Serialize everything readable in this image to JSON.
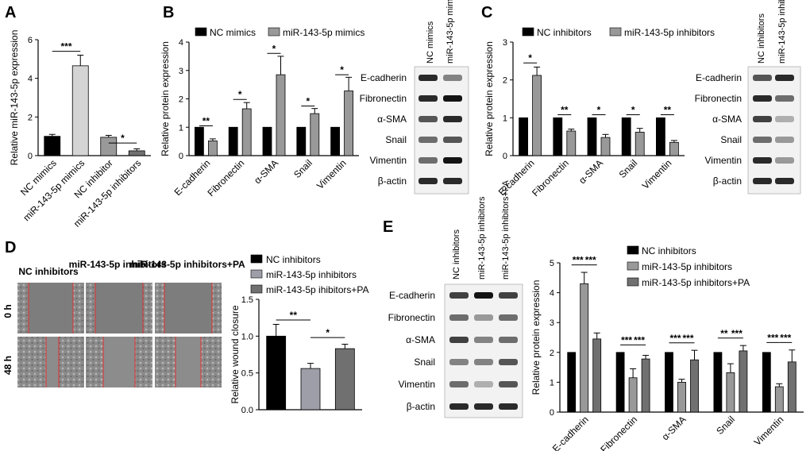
{
  "panel_letters": [
    "A",
    "B",
    "C",
    "D",
    "E"
  ],
  "blot_label_sets": {
    "B": [
      "E-cadherin",
      "Fibronectin",
      "α-SMA",
      "Snail",
      "Vimentin",
      "β-actin"
    ],
    "C": [
      "E-cadherin",
      "Fibronectin",
      "α-SMA",
      "Snail",
      "Vimentin",
      "β-actin"
    ],
    "E": [
      "E-cadherin",
      "Fibronectin",
      "α-SMA",
      "Snail",
      "Vimentin",
      "β-actin"
    ]
  },
  "blot_lanes": {
    "B": [
      "NC mimics",
      "miR-143-5p mimics"
    ],
    "C": [
      "NC inhibitors",
      "miR-143-5p inhibitors"
    ],
    "E": [
      "NC inhibitors",
      "miR-143-5p inhibitors",
      "miR-143-5p inhibitors+PA"
    ]
  },
  "wound_images": {
    "columns": [
      "NC inhibitors",
      "miR-143-5p inhibitors",
      "miR-143-5p inhibitors+PA"
    ],
    "rows": [
      "0 h",
      "48 h"
    ]
  },
  "colors": {
    "black": "#000000",
    "gray": "#999999",
    "light": "#d4d4d4",
    "mid": "#9e9ea8",
    "dark": "#707070"
  },
  "chart_data": [
    {
      "id": "A",
      "type": "bar",
      "categories": [
        "NC mimics",
        "miR-143-5p mimics",
        "NC inhibitor",
        "miR-143-5p inhibitors"
      ],
      "values": [
        1.0,
        4.65,
        0.95,
        0.25
      ],
      "errors": [
        0.1,
        0.55,
        0.1,
        0.1
      ],
      "colors": [
        "#000000",
        "#d4d4d4",
        "#999999",
        "#707070"
      ],
      "ylabel": "Relative miR-143-5p expression",
      "ylim": [
        0,
        6
      ],
      "yticks": [
        0,
        2,
        4,
        6
      ],
      "sig": [
        {
          "from": 0,
          "to": 1,
          "label": "***",
          "value": 5.4
        },
        {
          "from": 2,
          "to": 3,
          "label": "*",
          "value": 0.65
        }
      ]
    },
    {
      "id": "B",
      "type": "bar",
      "categories": [
        "E-cadherin",
        "Fibronectin",
        "α-SMA",
        "Snail",
        "Vimentin"
      ],
      "series": [
        {
          "name": "NC mimics",
          "values": [
            1,
            1,
            1,
            1,
            1
          ],
          "errors": [
            0,
            0,
            0,
            0,
            0
          ],
          "color": "#000000"
        },
        {
          "name": "miR-143-5p  mimics",
          "values": [
            0.52,
            1.65,
            2.85,
            1.48,
            2.28
          ],
          "errors": [
            0.07,
            0.22,
            0.65,
            0.18,
            0.48
          ],
          "color": "#999999"
        }
      ],
      "ylabel": "Relative protein expression",
      "ylim": [
        0,
        4
      ],
      "yticks": [
        0,
        1,
        2,
        3,
        4
      ],
      "sig": [
        "**",
        "*",
        "*",
        "*",
        "*"
      ],
      "sig_values": [
        1.05,
        1.98,
        3.6,
        1.75,
        2.85
      ]
    },
    {
      "id": "C",
      "type": "bar",
      "categories": [
        "E-cadherin",
        "Fibronectin",
        "α-SMA",
        "Snail",
        "Vimentin"
      ],
      "series": [
        {
          "name": "NC inhibitors",
          "values": [
            1,
            1,
            1,
            1,
            1
          ],
          "errors": [
            0,
            0,
            0,
            0,
            0
          ],
          "color": "#000000"
        },
        {
          "name": "miR-143-5p inhibitors",
          "values": [
            2.12,
            0.65,
            0.48,
            0.62,
            0.35
          ],
          "errors": [
            0.22,
            0.05,
            0.08,
            0.1,
            0.05
          ],
          "color": "#999999"
        }
      ],
      "ylabel": "Relative protein expression",
      "ylim": [
        0,
        3
      ],
      "yticks": [
        0,
        1,
        2,
        3
      ],
      "sig": [
        "*",
        "**",
        "*",
        "*",
        "**"
      ],
      "sig_values": [
        2.45,
        1.08,
        1.08,
        1.08,
        1.08
      ]
    },
    {
      "id": "D",
      "type": "bar",
      "categories": [
        "NC inhibitors",
        "miR-143-5p inhibitors",
        "miR-143-5p ihibitors+PA"
      ],
      "values": [
        1.0,
        0.56,
        0.83
      ],
      "errors": [
        0.16,
        0.07,
        0.06
      ],
      "colors": [
        "#000000",
        "#9e9ea8",
        "#707070"
      ],
      "ylabel": "Relative wound closure",
      "ylim": [
        0,
        1.5
      ],
      "yticks": [
        0,
        0.5,
        1.0,
        1.5
      ],
      "ytick_labels": [
        "0.0",
        "0.5",
        "1.0",
        "1.5"
      ],
      "sig": [
        {
          "from": 0,
          "to": 1,
          "label": "**",
          "value": 1.22
        },
        {
          "from": 1,
          "to": 2,
          "label": "*",
          "value": 0.98
        }
      ]
    },
    {
      "id": "E",
      "type": "bar",
      "categories": [
        "E-cadherin",
        "Fibronectin",
        "α-SMA",
        "Snail",
        "Vimentin"
      ],
      "series": [
        {
          "name": "NC inhibitors",
          "values": [
            2.0,
            2.0,
            2.0,
            2.0,
            2.0
          ],
          "errors": [
            0,
            0,
            0,
            0,
            0
          ],
          "color": "#000000"
        },
        {
          "name": "miR-143-5p inhibitors",
          "values": [
            4.3,
            1.15,
            1.0,
            1.32,
            0.85
          ],
          "errors": [
            0.38,
            0.3,
            0.1,
            0.3,
            0.1
          ],
          "color": "#999999"
        },
        {
          "name": "miR-143-5p inhibitors+PA",
          "values": [
            2.45,
            1.78,
            1.75,
            2.05,
            1.68
          ],
          "errors": [
            0.2,
            0.12,
            0.32,
            0.18,
            0.4
          ],
          "color": "#707070"
        }
      ],
      "ylabel": "Relative protein expression",
      "ylim": [
        0,
        5
      ],
      "yticks": [
        0,
        1,
        2,
        3,
        4,
        5
      ],
      "sig": [
        [
          "***",
          "***"
        ],
        [
          "***",
          "***"
        ],
        [
          "***",
          "***"
        ],
        [
          "**",
          "***"
        ],
        [
          "***",
          "***"
        ]
      ]
    }
  ]
}
